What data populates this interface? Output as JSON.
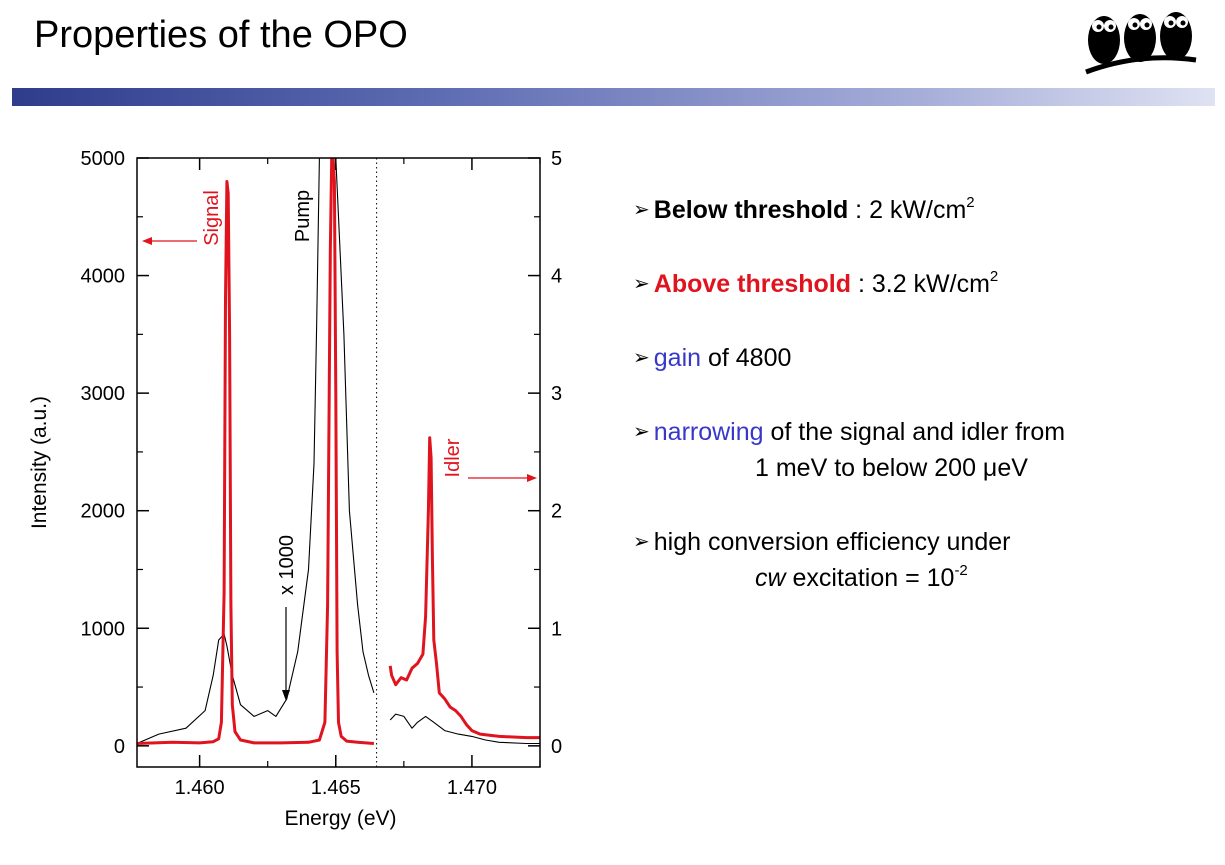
{
  "slide": {
    "title": "Properties of the OPO"
  },
  "colors": {
    "signal_red": "#e0141e",
    "highlight_blue": "#3838c8",
    "pump_black": "#000000"
  },
  "logo": {
    "icon": "three-owls-logo"
  },
  "bullets": {
    "b1": {
      "key": "Below threshold",
      "rest": " : 2 kW/cm",
      "sup": "2"
    },
    "b2": {
      "key": "Above threshold",
      "rest": " : 3.2 kW/cm",
      "sup": "2"
    },
    "b3": {
      "key": "gain",
      "rest": " of 4800"
    },
    "b4": {
      "key": "narrowing",
      "rest": " of the signal and idler from",
      "cont": "1 meV to below 200 μeV"
    },
    "b5": {
      "line1": "high conversion efficiency under",
      "cont_italic": "cw",
      "cont_rest": " excitation = 10",
      "cont_sup": "-2"
    }
  },
  "chart_data": {
    "type": "line",
    "xlabel": "Energy (eV)",
    "ylabel_left": "Intensity (a.u.)",
    "xlim": [
      1.4577,
      1.4725
    ],
    "ylim_left": [
      -180,
      5000
    ],
    "ylim_right": [
      -0.18,
      5
    ],
    "x_ticks": [
      1.46,
      1.465,
      1.47
    ],
    "x_tick_labels": [
      "1.460",
      "1.465",
      "1.470"
    ],
    "y_left_ticks": [
      0,
      1000,
      2000,
      3000,
      4000,
      5000
    ],
    "y_left_tick_labels": [
      "0",
      "1000",
      "2000",
      "3000",
      "4000",
      "5000"
    ],
    "y_right_ticks": [
      0,
      1,
      2,
      3,
      4,
      5
    ],
    "y_right_tick_labels": [
      "0",
      "1",
      "2",
      "3",
      "4",
      "5"
    ],
    "divider_x": 1.4665,
    "annotations": {
      "signal": "Signal",
      "pump": "Pump",
      "idler": "Idler",
      "scale": "x 1000"
    },
    "series": [
      {
        "name": "Signal",
        "color": "#e0141e",
        "axis": "left",
        "segments": [
          {
            "x": [
              1.4577,
              1.459,
              1.46,
              1.4605,
              1.4607,
              1.4608,
              1.4609,
              1.46095,
              1.461,
              1.46105,
              1.4611,
              1.46115,
              1.4612,
              1.4613,
              1.4615,
              1.462,
              1.463,
              1.464,
              1.4644,
              1.4646,
              1.4647,
              1.4648,
              1.46485,
              1.4649,
              1.46495,
              1.465,
              1.46505,
              1.4651,
              1.4652,
              1.4654,
              1.4658,
              1.4664
            ],
            "y": [
              20,
              30,
              25,
              35,
              60,
              200,
              1300,
              3800,
              4800,
              4700,
              3500,
              1200,
              350,
              120,
              50,
              25,
              25,
              30,
              50,
              200,
              1200,
              4200,
              5000,
              5000,
              4800,
              3000,
              800,
              200,
              80,
              40,
              30,
              20
            ]
          },
          {
            "x": [
              1.467,
              1.46705,
              1.4672,
              1.4674,
              1.4676,
              1.4678,
              1.468,
              1.4682,
              1.4683,
              1.4684,
              1.46845,
              1.4685,
              1.46855,
              1.4686,
              1.4687,
              1.4688,
              1.469,
              1.4692,
              1.4694,
              1.4696,
              1.4698,
              1.47,
              1.4703,
              1.471,
              1.472,
              1.4725
            ],
            "y": [
              680,
              600,
              520,
              580,
              560,
              660,
              700,
              780,
              1100,
              2000,
              2620,
              2450,
              1600,
              900,
              700,
              450,
              400,
              330,
              300,
              250,
              180,
              130,
              100,
              80,
              70,
              70
            ]
          }
        ]
      },
      {
        "name": "Pump",
        "color": "#000000",
        "axis": "right",
        "segments": [
          {
            "x": [
              1.4577,
              1.4585,
              1.4595,
              1.4602,
              1.4605,
              1.4607,
              1.4609,
              1.461,
              1.4612,
              1.4615,
              1.462,
              1.4625,
              1.4628,
              1.4632,
              1.4636,
              1.464,
              1.4642,
              1.4643,
              1.4644,
              1.4645,
              1.465,
              1.4653,
              1.4655,
              1.4658,
              1.466,
              1.4662,
              1.4664
            ],
            "y": [
              0.02,
              0.1,
              0.15,
              0.3,
              0.6,
              0.9,
              0.95,
              0.85,
              0.6,
              0.35,
              0.25,
              0.3,
              0.25,
              0.4,
              0.8,
              1.5,
              2.4,
              3.6,
              5,
              5,
              5,
              3.5,
              2.0,
              1.2,
              0.8,
              0.6,
              0.45
            ]
          },
          {
            "x": [
              1.467,
              1.4672,
              1.4675,
              1.4678,
              1.468,
              1.4683,
              1.4686,
              1.469,
              1.4695,
              1.47,
              1.4705,
              1.471,
              1.472,
              1.4725
            ],
            "y": [
              0.22,
              0.27,
              0.25,
              0.15,
              0.2,
              0.25,
              0.2,
              0.13,
              0.1,
              0.08,
              0.05,
              0.03,
              0.02,
              0.02
            ]
          }
        ]
      }
    ]
  }
}
